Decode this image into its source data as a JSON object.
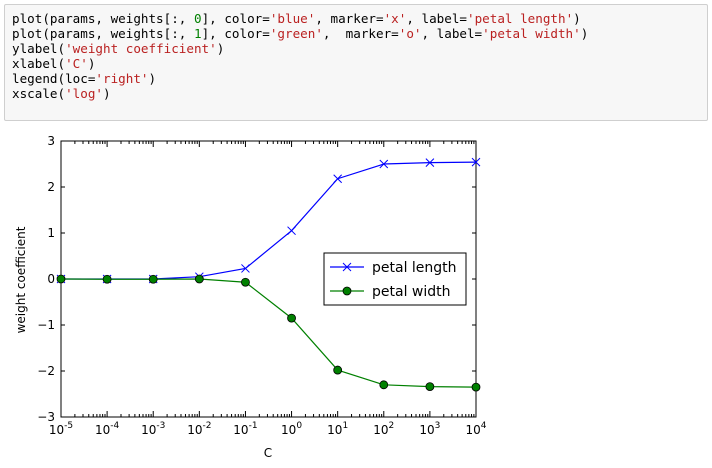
{
  "notebook": {
    "code_lines": [
      [
        {
          "t": "plot(params, weights[:, ",
          "c": ""
        },
        {
          "t": "0",
          "c": "num"
        },
        {
          "t": "], color=",
          "c": ""
        },
        {
          "t": "'blue'",
          "c": "str"
        },
        {
          "t": ", marker=",
          "c": ""
        },
        {
          "t": "'x'",
          "c": "str"
        },
        {
          "t": ", label=",
          "c": ""
        },
        {
          "t": "'petal length'",
          "c": "str"
        },
        {
          "t": ")",
          "c": ""
        }
      ],
      [
        {
          "t": "plot(params, weights[:, ",
          "c": ""
        },
        {
          "t": "1",
          "c": "num"
        },
        {
          "t": "], color=",
          "c": ""
        },
        {
          "t": "'green'",
          "c": "str"
        },
        {
          "t": ",  marker=",
          "c": ""
        },
        {
          "t": "'o'",
          "c": "str"
        },
        {
          "t": ", label=",
          "c": ""
        },
        {
          "t": "'petal width'",
          "c": "str"
        },
        {
          "t": ")",
          "c": ""
        }
      ],
      [
        {
          "t": "ylabel(",
          "c": ""
        },
        {
          "t": "'weight coefficient'",
          "c": "str"
        },
        {
          "t": ")",
          "c": ""
        }
      ],
      [
        {
          "t": "xlabel(",
          "c": ""
        },
        {
          "t": "'C'",
          "c": "str"
        },
        {
          "t": ")",
          "c": ""
        }
      ],
      [
        {
          "t": "legend(loc=",
          "c": ""
        },
        {
          "t": "'right'",
          "c": "str"
        },
        {
          "t": ")",
          "c": ""
        }
      ],
      [
        {
          "t": "xscale(",
          "c": ""
        },
        {
          "t": "'log'",
          "c": "str"
        },
        {
          "t": ")",
          "c": ""
        }
      ]
    ]
  },
  "chart_data": {
    "type": "line",
    "title": "",
    "xlabel": "C",
    "ylabel": "weight coefficient",
    "xscale": "log",
    "x": [
      1e-05,
      0.0001,
      0.001,
      0.01,
      0.1,
      1,
      10,
      100,
      1000,
      10000
    ],
    "xlim": [
      1e-05,
      10000
    ],
    "ylim": [
      -3,
      3
    ],
    "x_tick_exponents": [
      "-5",
      "-4",
      "-3",
      "-2",
      "-1",
      "0",
      "1",
      "2",
      "3",
      "4"
    ],
    "x_tick_base": "10",
    "y_ticks": [
      {
        "value": 3,
        "label": "3"
      },
      {
        "value": 2,
        "label": "2"
      },
      {
        "value": 1,
        "label": "1"
      },
      {
        "value": 0,
        "label": "0"
      },
      {
        "value": -1,
        "label": "−1"
      },
      {
        "value": -2,
        "label": "−2"
      },
      {
        "value": -3,
        "label": "−3"
      }
    ],
    "grid": false,
    "legend_position": "right",
    "series": [
      {
        "name": "petal length",
        "color": "#0000ff",
        "marker": "x",
        "values": [
          0.0,
          0.0,
          0.0,
          0.05,
          0.23,
          1.05,
          2.18,
          2.5,
          2.53,
          2.54
        ]
      },
      {
        "name": "petal width",
        "color": "#008000",
        "marker": "o",
        "values": [
          0.0,
          -0.005,
          -0.005,
          0.0,
          -0.07,
          -0.85,
          -1.98,
          -2.3,
          -2.34,
          -2.35
        ]
      }
    ]
  }
}
